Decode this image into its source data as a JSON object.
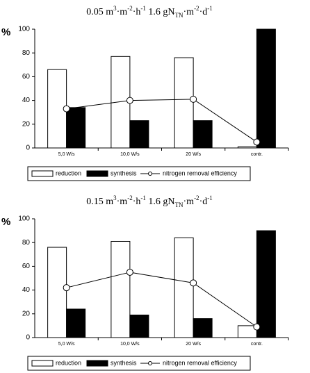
{
  "chart_data": [
    {
      "type": "bar-line",
      "title": [
        {
          "text": "0.05 m"
        },
        {
          "text": "3",
          "baseline": "super"
        },
        {
          "text": "·m"
        },
        {
          "text": "-2",
          "baseline": "super"
        },
        {
          "text": "·h"
        },
        {
          "text": "-1",
          "baseline": "super"
        },
        {
          "text": "  1.6 gN"
        },
        {
          "text": "TN",
          "baseline": "sub"
        },
        {
          "text": "·m"
        },
        {
          "text": "-2",
          "baseline": "super"
        },
        {
          "text": "·d"
        },
        {
          "text": "-1",
          "baseline": "super"
        }
      ],
      "y_label": "%",
      "categories": [
        "5,0 W/s",
        "10,0 W/s",
        "20 W/s",
        "contr."
      ],
      "series": [
        {
          "name": "reduction",
          "type": "bar",
          "color": "#ffffff",
          "values": [
            66,
            77,
            76,
            1
          ]
        },
        {
          "name": "synthesis",
          "type": "bar",
          "color": "#000000",
          "values": [
            34,
            23,
            23,
            100
          ]
        },
        {
          "name": "nitrogen removal efficiency",
          "type": "line",
          "color": "#000000",
          "values": [
            33,
            40,
            41,
            5
          ]
        }
      ],
      "ylim": [
        0,
        100
      ],
      "yticks": [
        0,
        20,
        40,
        60,
        80,
        100
      ]
    },
    {
      "type": "bar-line",
      "title": [
        {
          "text": "0.15 m"
        },
        {
          "text": "3",
          "baseline": "super"
        },
        {
          "text": "·m"
        },
        {
          "text": "-2",
          "baseline": "super"
        },
        {
          "text": "·h"
        },
        {
          "text": "-1",
          "baseline": "super"
        },
        {
          "text": "  1.6 gN"
        },
        {
          "text": "TN",
          "baseline": "sub"
        },
        {
          "text": "·m"
        },
        {
          "text": "-2",
          "baseline": "super"
        },
        {
          "text": "·d"
        },
        {
          "text": "-1",
          "baseline": "super"
        }
      ],
      "y_label": "%",
      "categories": [
        "5,0 W/s",
        "10,0 W/s",
        "20 W/s",
        "contr."
      ],
      "series": [
        {
          "name": "reduction",
          "type": "bar",
          "color": "#ffffff",
          "values": [
            76,
            81,
            84,
            10
          ]
        },
        {
          "name": "synthesis",
          "type": "bar",
          "color": "#000000",
          "values": [
            24,
            19,
            16,
            90
          ]
        },
        {
          "name": "nitrogen removal efficiency",
          "type": "line",
          "color": "#000000",
          "values": [
            42,
            55,
            46,
            9
          ]
        }
      ],
      "ylim": [
        0,
        100
      ],
      "yticks": [
        0,
        20,
        40,
        60,
        80,
        100
      ]
    }
  ]
}
